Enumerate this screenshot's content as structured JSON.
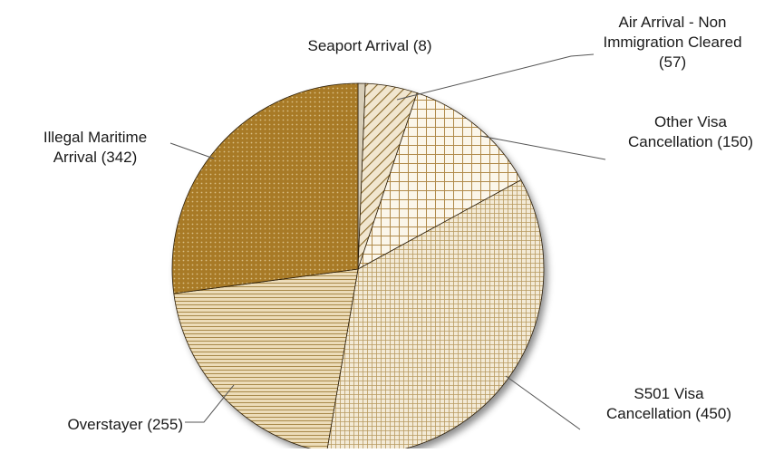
{
  "chart_data": {
    "type": "pie",
    "title": "",
    "slices": [
      {
        "label_lines": [
          "Seaport Arrival (8)"
        ],
        "category": "Seaport Arrival",
        "value": 8,
        "color": "#d7cdb7",
        "pattern": "plain"
      },
      {
        "label_lines": [
          "Air Arrival - Non",
          "Immigration Cleared",
          "(57)"
        ],
        "category": "Air Arrival - Non Immigration Cleared",
        "value": 57,
        "color": "#8a6a2a",
        "pattern": "diagonal"
      },
      {
        "label_lines": [
          "Other Visa",
          "Cancellation (150)"
        ],
        "category": "Other Visa Cancellation",
        "value": 150,
        "color": "#b08a4a",
        "pattern": "grid-large"
      },
      {
        "label_lines": [
          "S501 Visa",
          "Cancellation (450)"
        ],
        "category": "S501 Visa Cancellation",
        "value": 450,
        "color": "#b89a60",
        "pattern": "grid-small"
      },
      {
        "label_lines": [
          "Overstayer (255)"
        ],
        "category": "Overstayer",
        "value": 255,
        "color": "#a8894a",
        "pattern": "horizontal"
      },
      {
        "label_lines": [
          "Illegal Maritime",
          "Arrival (342)"
        ],
        "category": "Illegal Maritime Arrival",
        "value": 342,
        "color": "#a87a26",
        "pattern": "dots"
      }
    ],
    "start_angle_deg": 0,
    "direction": "clockwise",
    "colors": {
      "title": "#c8a015",
      "leader": "#555555",
      "background": "#ffffff"
    }
  }
}
